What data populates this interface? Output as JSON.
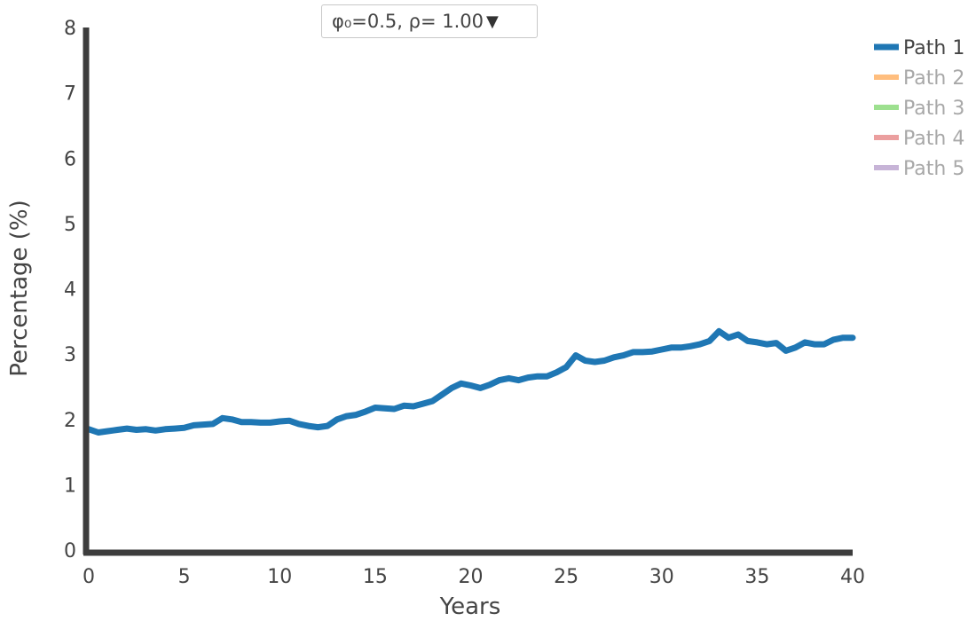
{
  "selector": {
    "label": "φ₀=0.5, ρ= 1.00",
    "caret": "▼"
  },
  "colors": {
    "axis": "#3d3d3d",
    "text": "#444444",
    "hidden_text": "#a8a8a8"
  },
  "chart_data": {
    "type": "line",
    "xlabel": "Years",
    "ylabel": "Percentage (%)",
    "xlim": [
      0,
      40
    ],
    "ylim": [
      0,
      8
    ],
    "xticks": [
      0,
      5,
      10,
      15,
      20,
      25,
      30,
      35,
      40
    ],
    "yticks": [
      0,
      1,
      2,
      3,
      4,
      5,
      6,
      7,
      8
    ],
    "grid": false,
    "legend_position": "top-right",
    "series": [
      {
        "name": "Path 1",
        "color": "#1f77b4",
        "visible": true,
        "x": [
          0,
          0.5,
          1,
          1.5,
          2,
          2.5,
          3,
          3.5,
          4,
          4.5,
          5,
          5.5,
          6,
          6.5,
          7,
          7.5,
          8,
          8.5,
          9,
          9.5,
          10,
          10.5,
          11,
          11.5,
          12,
          12.5,
          13,
          13.5,
          14,
          14.5,
          15,
          15.5,
          16,
          16.5,
          17,
          17.5,
          18,
          18.5,
          19,
          19.5,
          20,
          20.5,
          21,
          21.5,
          22,
          22.5,
          23,
          23.5,
          24,
          24.5,
          25,
          25.5,
          26,
          26.5,
          27,
          27.5,
          28,
          28.5,
          29,
          29.5,
          30,
          30.5,
          31,
          31.5,
          32,
          32.5,
          33,
          33.5,
          34,
          34.5,
          35,
          35.5,
          36,
          36.5,
          37,
          37.5,
          38,
          38.5,
          39,
          39.5,
          40
        ],
        "values": [
          1.85,
          1.8,
          1.82,
          1.84,
          1.86,
          1.84,
          1.85,
          1.83,
          1.85,
          1.86,
          1.87,
          1.91,
          1.92,
          1.93,
          2.02,
          2.0,
          1.96,
          1.96,
          1.95,
          1.95,
          1.97,
          1.98,
          1.93,
          1.9,
          1.88,
          1.9,
          2.0,
          2.05,
          2.07,
          2.12,
          2.18,
          2.17,
          2.16,
          2.21,
          2.2,
          2.24,
          2.28,
          2.38,
          2.48,
          2.55,
          2.52,
          2.48,
          2.53,
          2.6,
          2.63,
          2.6,
          2.64,
          2.66,
          2.66,
          2.72,
          2.8,
          2.98,
          2.9,
          2.88,
          2.9,
          2.95,
          2.98,
          3.03,
          3.03,
          3.04,
          3.07,
          3.1,
          3.1,
          3.12,
          3.15,
          3.2,
          3.35,
          3.25,
          3.3,
          3.2,
          3.18,
          3.15,
          3.17,
          3.05,
          3.1,
          3.18,
          3.15,
          3.15,
          3.22,
          3.25,
          3.25
        ]
      },
      {
        "name": "Path 2",
        "color": "#ffbb78",
        "visible": false
      },
      {
        "name": "Path 3",
        "color": "#98df8a",
        "visible": false
      },
      {
        "name": "Path 4",
        "color": "#ea9a9a",
        "visible": false
      },
      {
        "name": "Path 5",
        "color": "#c5b0d5",
        "visible": false
      }
    ]
  }
}
